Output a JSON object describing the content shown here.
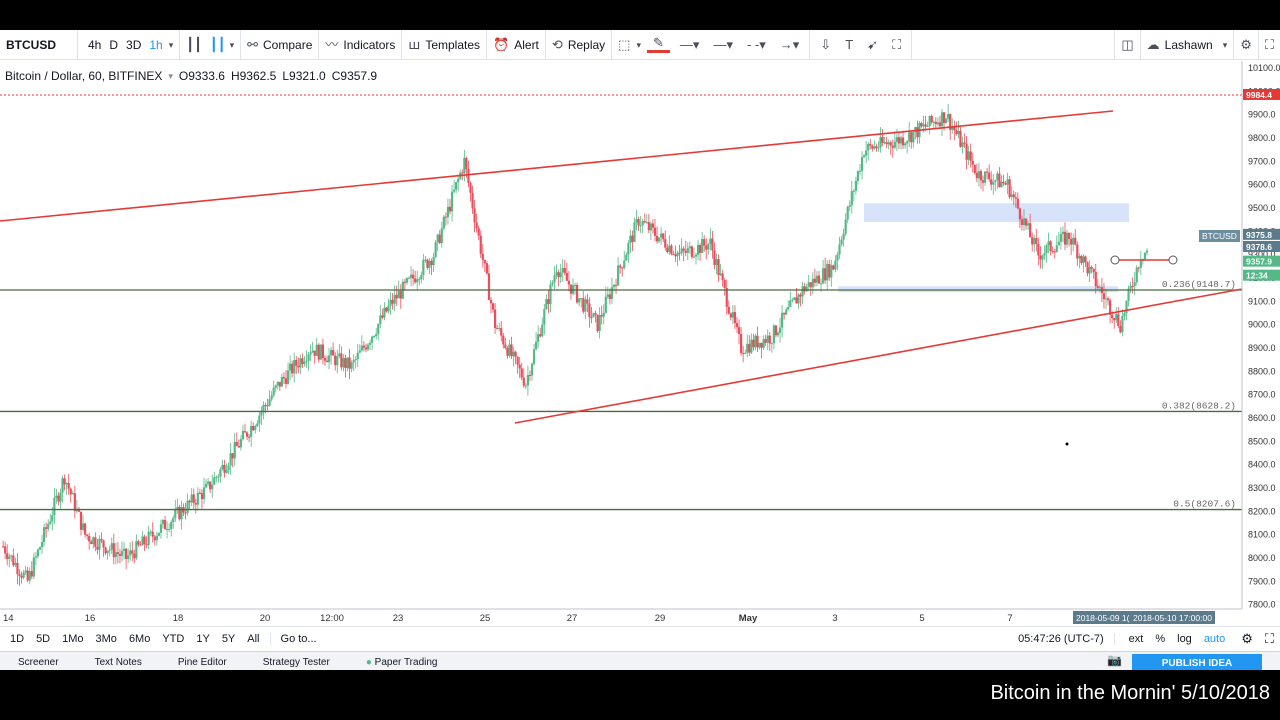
{
  "toolbar": {
    "symbol": "BTCUSD",
    "intervals": [
      "4h",
      "D",
      "3D",
      "1h"
    ],
    "compare": "Compare",
    "indicators": "Indicators",
    "templates": "Templates",
    "alert": "Alert",
    "replay": "Replay",
    "user": "Lashawn"
  },
  "legend": {
    "title": "Bitcoin / Dollar, 60, BITFINEX",
    "open": "O9333.6",
    "high": "H9362.5",
    "low": "L9321.0",
    "close": "C9357.9"
  },
  "price_tags": {
    "resistance": "9984.4",
    "symbol": "BTCUSD",
    "p1": "9375.8",
    "p2": "9378.6",
    "last": "9357.9",
    "countdown": "12:34"
  },
  "fib_labels": [
    "0.236(9148.7)",
    "0.382(8628.2)",
    "0.5(8207.6)"
  ],
  "crosshair_labels": {
    "date_a": "2018-05-09 1(",
    "date_b": "2018-05-10 17:00:00"
  },
  "bottom_bar": {
    "ranges": [
      "1D",
      "5D",
      "1Mo",
      "3Mo",
      "6Mo",
      "YTD",
      "1Y",
      "5Y",
      "All"
    ],
    "goto": "Go to...",
    "time": "05:47:26 (UTC-7)",
    "ext": "ext",
    "pct": "%",
    "log": "log",
    "auto": "auto"
  },
  "bottom_tabs": [
    "Screener",
    "Text Notes",
    "Pine Editor",
    "Strategy Tester",
    "Paper Trading"
  ],
  "publish": "PUBLISH IDEA",
  "caption": "Bitcoin in the Mornin' 5/10/2018",
  "colors": {
    "bull": "#53b987",
    "bear": "#eb4d5c",
    "trend": "#e53935",
    "fib": "#4a6b3a",
    "zone": "#c9daf8",
    "accent": "#2196f3"
  },
  "chart_data": {
    "type": "candlestick",
    "y_ticks": [
      10100,
      10000,
      9900,
      9800,
      9700,
      9600,
      9500,
      9400,
      9300,
      9200,
      9100,
      9000,
      8900,
      8800,
      8700,
      8600,
      8500,
      8400,
      8300,
      8200,
      8100,
      8000,
      7900,
      7800
    ],
    "x_ticks": [
      "14",
      "16",
      "18",
      "20",
      "12:00",
      "23",
      "25",
      "27",
      "29",
      "May",
      "3",
      "5",
      "7"
    ],
    "ylim": [
      7730,
      10130
    ],
    "swing_points": [
      {
        "t": 0,
        "p": 8050
      },
      {
        "t": 12,
        "p": 7900
      },
      {
        "t": 30,
        "p": 8350
      },
      {
        "t": 40,
        "p": 8100
      },
      {
        "t": 60,
        "p": 8000
      },
      {
        "t": 80,
        "p": 8150
      },
      {
        "t": 100,
        "p": 8300
      },
      {
        "t": 120,
        "p": 8550
      },
      {
        "t": 135,
        "p": 8750
      },
      {
        "t": 150,
        "p": 8900
      },
      {
        "t": 170,
        "p": 8820
      },
      {
        "t": 190,
        "p": 9100
      },
      {
        "t": 210,
        "p": 9300
      },
      {
        "t": 225,
        "p": 9700
      },
      {
        "t": 240,
        "p": 9000
      },
      {
        "t": 255,
        "p": 8750
      },
      {
        "t": 270,
        "p": 9250
      },
      {
        "t": 290,
        "p": 9000
      },
      {
        "t": 310,
        "p": 9450
      },
      {
        "t": 330,
        "p": 9300
      },
      {
        "t": 345,
        "p": 9350
      },
      {
        "t": 360,
        "p": 8900
      },
      {
        "t": 375,
        "p": 8950
      },
      {
        "t": 390,
        "p": 9150
      },
      {
        "t": 405,
        "p": 9250
      },
      {
        "t": 420,
        "p": 9750
      },
      {
        "t": 440,
        "p": 9800
      },
      {
        "t": 460,
        "p": 9900
      },
      {
        "t": 475,
        "p": 9650
      },
      {
        "t": 490,
        "p": 9600
      },
      {
        "t": 505,
        "p": 9300
      },
      {
        "t": 520,
        "p": 9380
      },
      {
        "t": 535,
        "p": 9150
      },
      {
        "t": 545,
        "p": 9000
      },
      {
        "t": 555,
        "p": 9300
      },
      {
        "t": 565,
        "p": 9360
      }
    ],
    "fib_levels": [
      {
        "ratio": "0.236",
        "price": 9148.7
      },
      {
        "ratio": "0.382",
        "price": 8628.2
      },
      {
        "ratio": "0.5",
        "price": 8207.6
      }
    ],
    "resistance_price": 9984.4,
    "last_price": 9357.9
  }
}
